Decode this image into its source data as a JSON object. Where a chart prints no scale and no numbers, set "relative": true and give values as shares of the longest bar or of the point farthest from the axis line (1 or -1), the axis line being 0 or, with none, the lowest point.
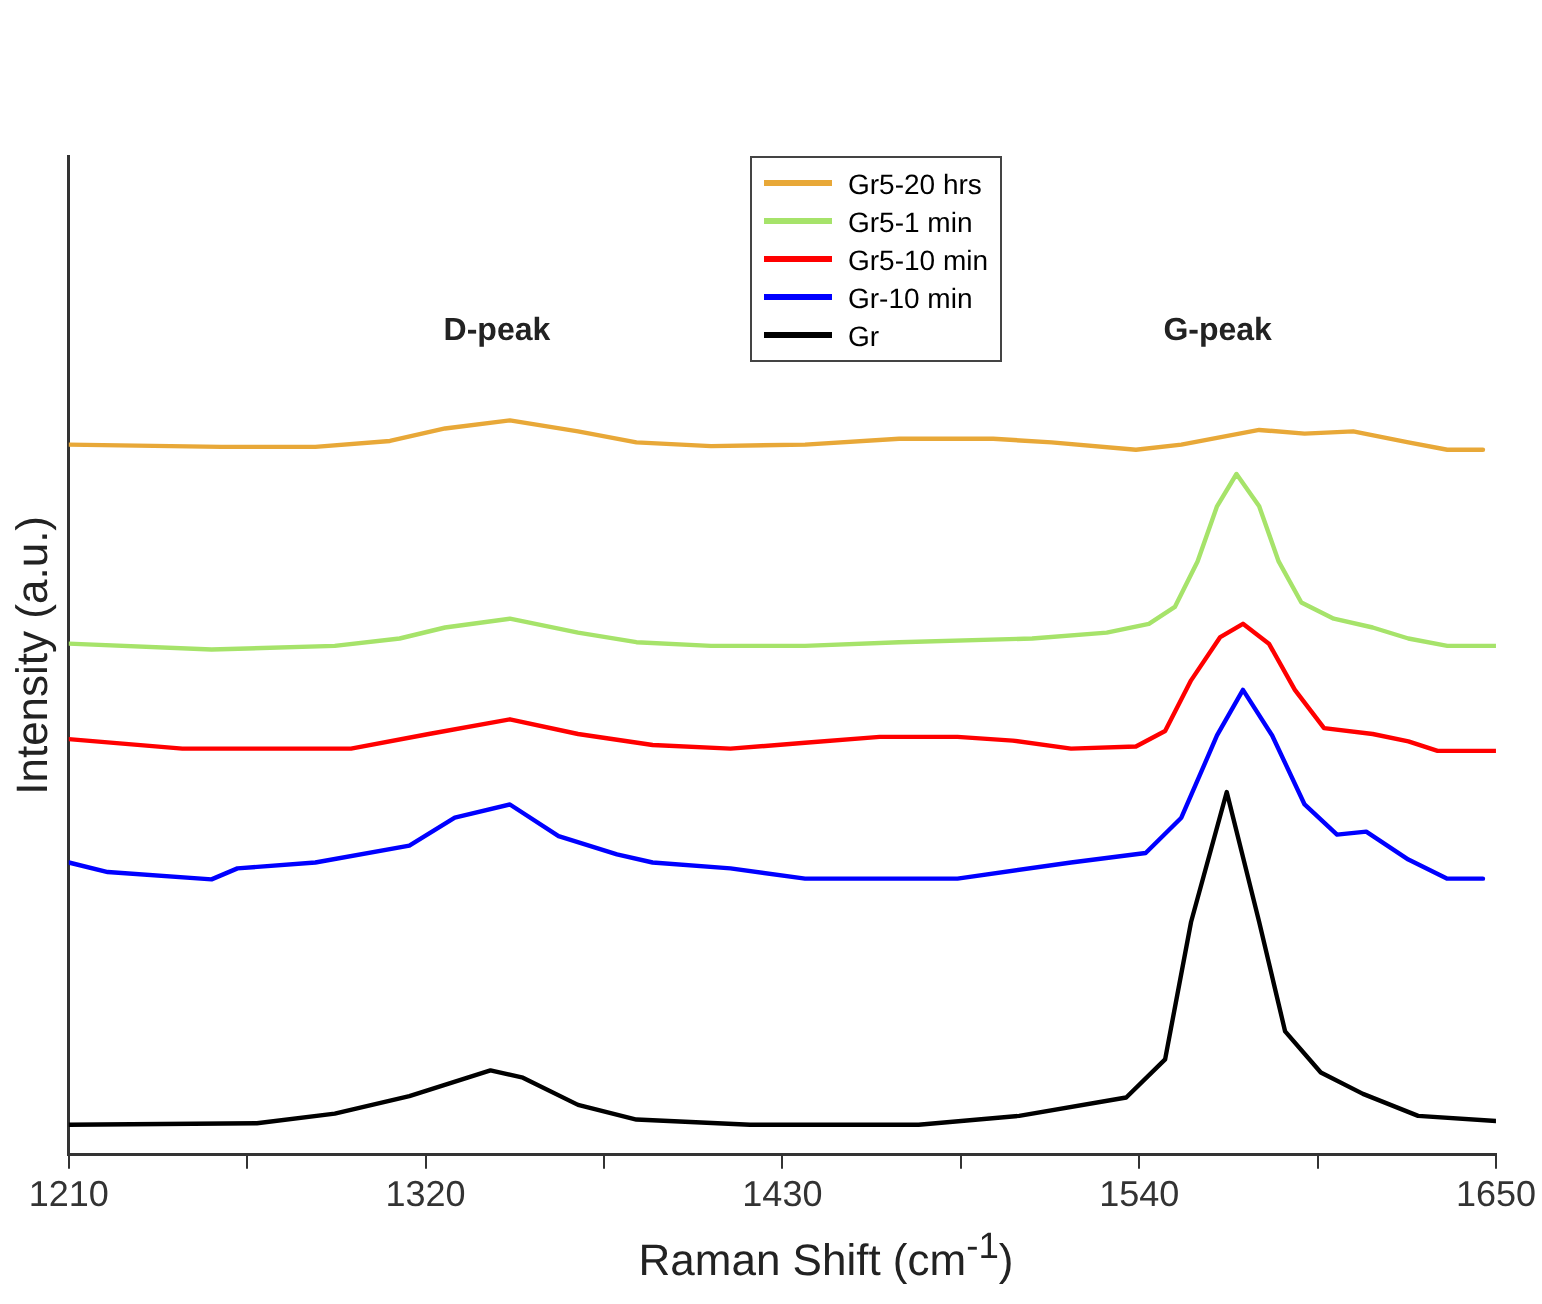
{
  "chart_data": {
    "type": "line",
    "xlabel": "Raman Shift (cm$^{-1}$)",
    "ylabel": "Intensity (a.u.)",
    "relative": true,
    "xlim": [
      1210,
      1650
    ],
    "xticks": [
      1210,
      {
        "value": 1265,
        "label": null
      },
      1320,
      {
        "value": 1375,
        "label": null
      },
      1430,
      {
        "value": 1485,
        "label": null
      },
      1540,
      {
        "value": 1595,
        "label": null
      },
      1650
    ],
    "grid": false,
    "legend": "top",
    "marker": "none",
    "annotations": [
      "D-peak",
      "G-peak"
    ],
    "series": [
      {
        "name": "Gr5-20 hrs",
        "color": "#e8a838",
        "x": [
          1210,
          1257,
          1286,
          1309,
          1326,
          1346,
          1367,
          1385,
          1408,
          1437,
          1466,
          1495,
          1513,
          1539,
          1553,
          1577,
          1591,
          1606,
          1623,
          1635,
          1646
        ],
        "values": [
          0.967,
          0.964,
          0.964,
          0.972,
          0.989,
          1.0,
          0.985,
          0.97,
          0.965,
          0.967,
          0.975,
          0.975,
          0.97,
          0.96,
          0.967,
          0.987,
          0.982,
          0.985,
          0.97,
          0.96,
          0.96
        ]
      },
      {
        "name": "Gr5-1 min",
        "color": "#a6e36a",
        "x": [
          1210,
          1254,
          1292,
          1312,
          1326,
          1346,
          1367,
          1385,
          1408,
          1437,
          1466,
          1507,
          1530,
          1543,
          1551,
          1558,
          1564,
          1570,
          1577,
          1583,
          1590,
          1600,
          1612,
          1623,
          1635,
          1650
        ],
        "values": [
          0.696,
          0.688,
          0.693,
          0.703,
          0.718,
          0.73,
          0.711,
          0.698,
          0.693,
          0.693,
          0.698,
          0.703,
          0.711,
          0.723,
          0.746,
          0.808,
          0.883,
          0.927,
          0.883,
          0.808,
          0.752,
          0.73,
          0.718,
          0.703,
          0.693,
          0.693
        ]
      },
      {
        "name": "Gr5-10 min",
        "color": "#ff0000",
        "x": [
          1210,
          1245,
          1297,
          1321,
          1346,
          1367,
          1390,
          1414,
          1437,
          1460,
          1484,
          1501,
          1519,
          1539,
          1548,
          1556,
          1565,
          1572,
          1580,
          1588,
          1597,
          1612,
          1623,
          1632,
          1650
        ],
        "values": [
          0.566,
          0.553,
          0.553,
          0.573,
          0.593,
          0.573,
          0.558,
          0.553,
          0.561,
          0.569,
          0.569,
          0.564,
          0.553,
          0.556,
          0.577,
          0.646,
          0.705,
          0.723,
          0.696,
          0.633,
          0.581,
          0.573,
          0.563,
          0.55,
          0.55
        ]
      },
      {
        "name": "Gr-10 min",
        "color": "#0000ff",
        "x": [
          1210,
          1222,
          1254,
          1262,
          1286,
          1315,
          1329,
          1346,
          1361,
          1379,
          1390,
          1414,
          1437,
          1484,
          1519,
          1542,
          1553,
          1564,
          1572,
          1581,
          1591,
          1601,
          1610,
          1623,
          1635,
          1646
        ],
        "values": [
          0.398,
          0.385,
          0.375,
          0.39,
          0.398,
          0.421,
          0.459,
          0.477,
          0.434,
          0.409,
          0.398,
          0.39,
          0.376,
          0.376,
          0.398,
          0.411,
          0.459,
          0.571,
          0.633,
          0.571,
          0.477,
          0.436,
          0.44,
          0.402,
          0.376,
          0.376
        ]
      },
      {
        "name": "Gr",
        "color": "#000000",
        "x": [
          1210,
          1268,
          1292,
          1315,
          1340,
          1350,
          1367,
          1385,
          1420,
          1472,
          1503,
          1536,
          1548,
          1556,
          1567,
          1577,
          1585,
          1596,
          1609,
          1626,
          1650
        ],
        "values": [
          0.041,
          0.043,
          0.056,
          0.08,
          0.115,
          0.105,
          0.068,
          0.048,
          0.041,
          0.041,
          0.053,
          0.078,
          0.13,
          0.317,
          0.494,
          0.317,
          0.168,
          0.112,
          0.083,
          0.053,
          0.046
        ]
      }
    ]
  }
}
